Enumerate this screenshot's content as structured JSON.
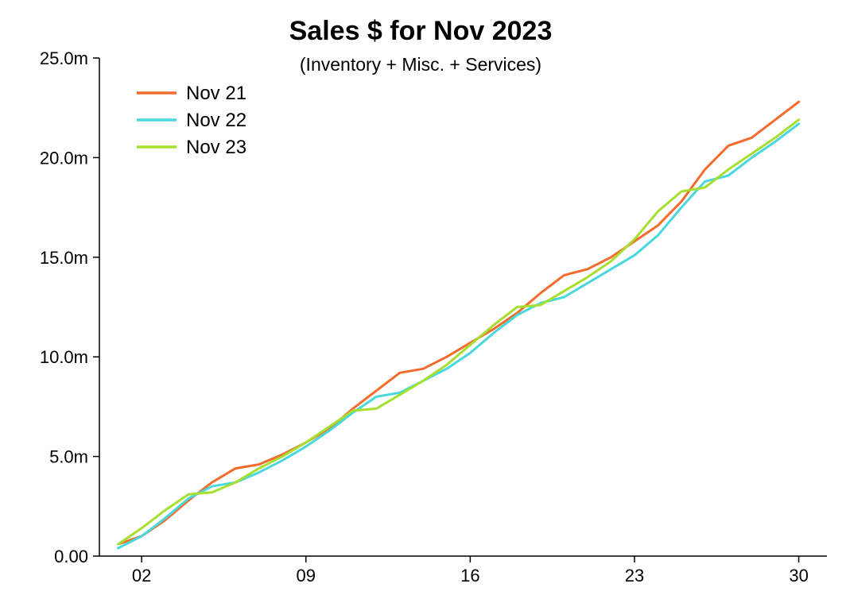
{
  "chart_data": {
    "type": "line",
    "title": "Sales $ for Nov 2023",
    "subtitle": "(Inventory + Misc. + Services)",
    "xlabel": "",
    "ylabel": "",
    "x": [
      1,
      2,
      3,
      4,
      5,
      6,
      7,
      8,
      9,
      10,
      11,
      12,
      13,
      14,
      15,
      16,
      17,
      18,
      19,
      20,
      21,
      22,
      23,
      24,
      25,
      26,
      27,
      28,
      29,
      30
    ],
    "xlim": [
      0.2,
      31.2
    ],
    "x_ticks": [
      2,
      9,
      16,
      23,
      30
    ],
    "x_tick_labels": [
      "02",
      "09",
      "16",
      "23",
      "30"
    ],
    "ylim": [
      0,
      25000000
    ],
    "y_ticks": [
      0,
      5000000,
      10000000,
      15000000,
      20000000,
      25000000
    ],
    "y_tick_labels": [
      "0.00",
      "5.0m",
      "10.0m",
      "15.0m",
      "20.0m",
      "25.0m"
    ],
    "grid": false,
    "legend_position": "top-left",
    "series": [
      {
        "name": "Nov 21",
        "color": "#f46b2b",
        "values": [
          600000,
          1000000,
          1800000,
          2800000,
          3700000,
          4400000,
          4600000,
          5100000,
          5700000,
          6400000,
          7400000,
          8300000,
          9200000,
          9400000,
          10000000,
          10700000,
          11400000,
          12200000,
          13200000,
          14100000,
          14400000,
          15000000,
          15800000,
          16600000,
          17800000,
          19400000,
          20600000,
          21000000,
          21900000,
          22800000
        ]
      },
      {
        "name": "Nov 22",
        "color": "#49d8dc",
        "values": [
          400000,
          1000000,
          1900000,
          2900000,
          3500000,
          3700000,
          4200000,
          4800000,
          5500000,
          6300000,
          7200000,
          8000000,
          8200000,
          8800000,
          9400000,
          10200000,
          11200000,
          12100000,
          12700000,
          13000000,
          13700000,
          14400000,
          15100000,
          16100000,
          17500000,
          18800000,
          19100000,
          20000000,
          20800000,
          21700000
        ]
      },
      {
        "name": "Nov 23",
        "color": "#a6df2f",
        "values": [
          600000,
          1400000,
          2300000,
          3100000,
          3200000,
          3700000,
          4400000,
          5000000,
          5700000,
          6500000,
          7300000,
          7400000,
          8100000,
          8800000,
          9600000,
          10600000,
          11600000,
          12500000,
          12600000,
          13300000,
          14000000,
          14800000,
          15900000,
          17300000,
          18300000,
          18500000,
          19400000,
          20200000,
          21000000,
          21900000
        ]
      }
    ]
  }
}
